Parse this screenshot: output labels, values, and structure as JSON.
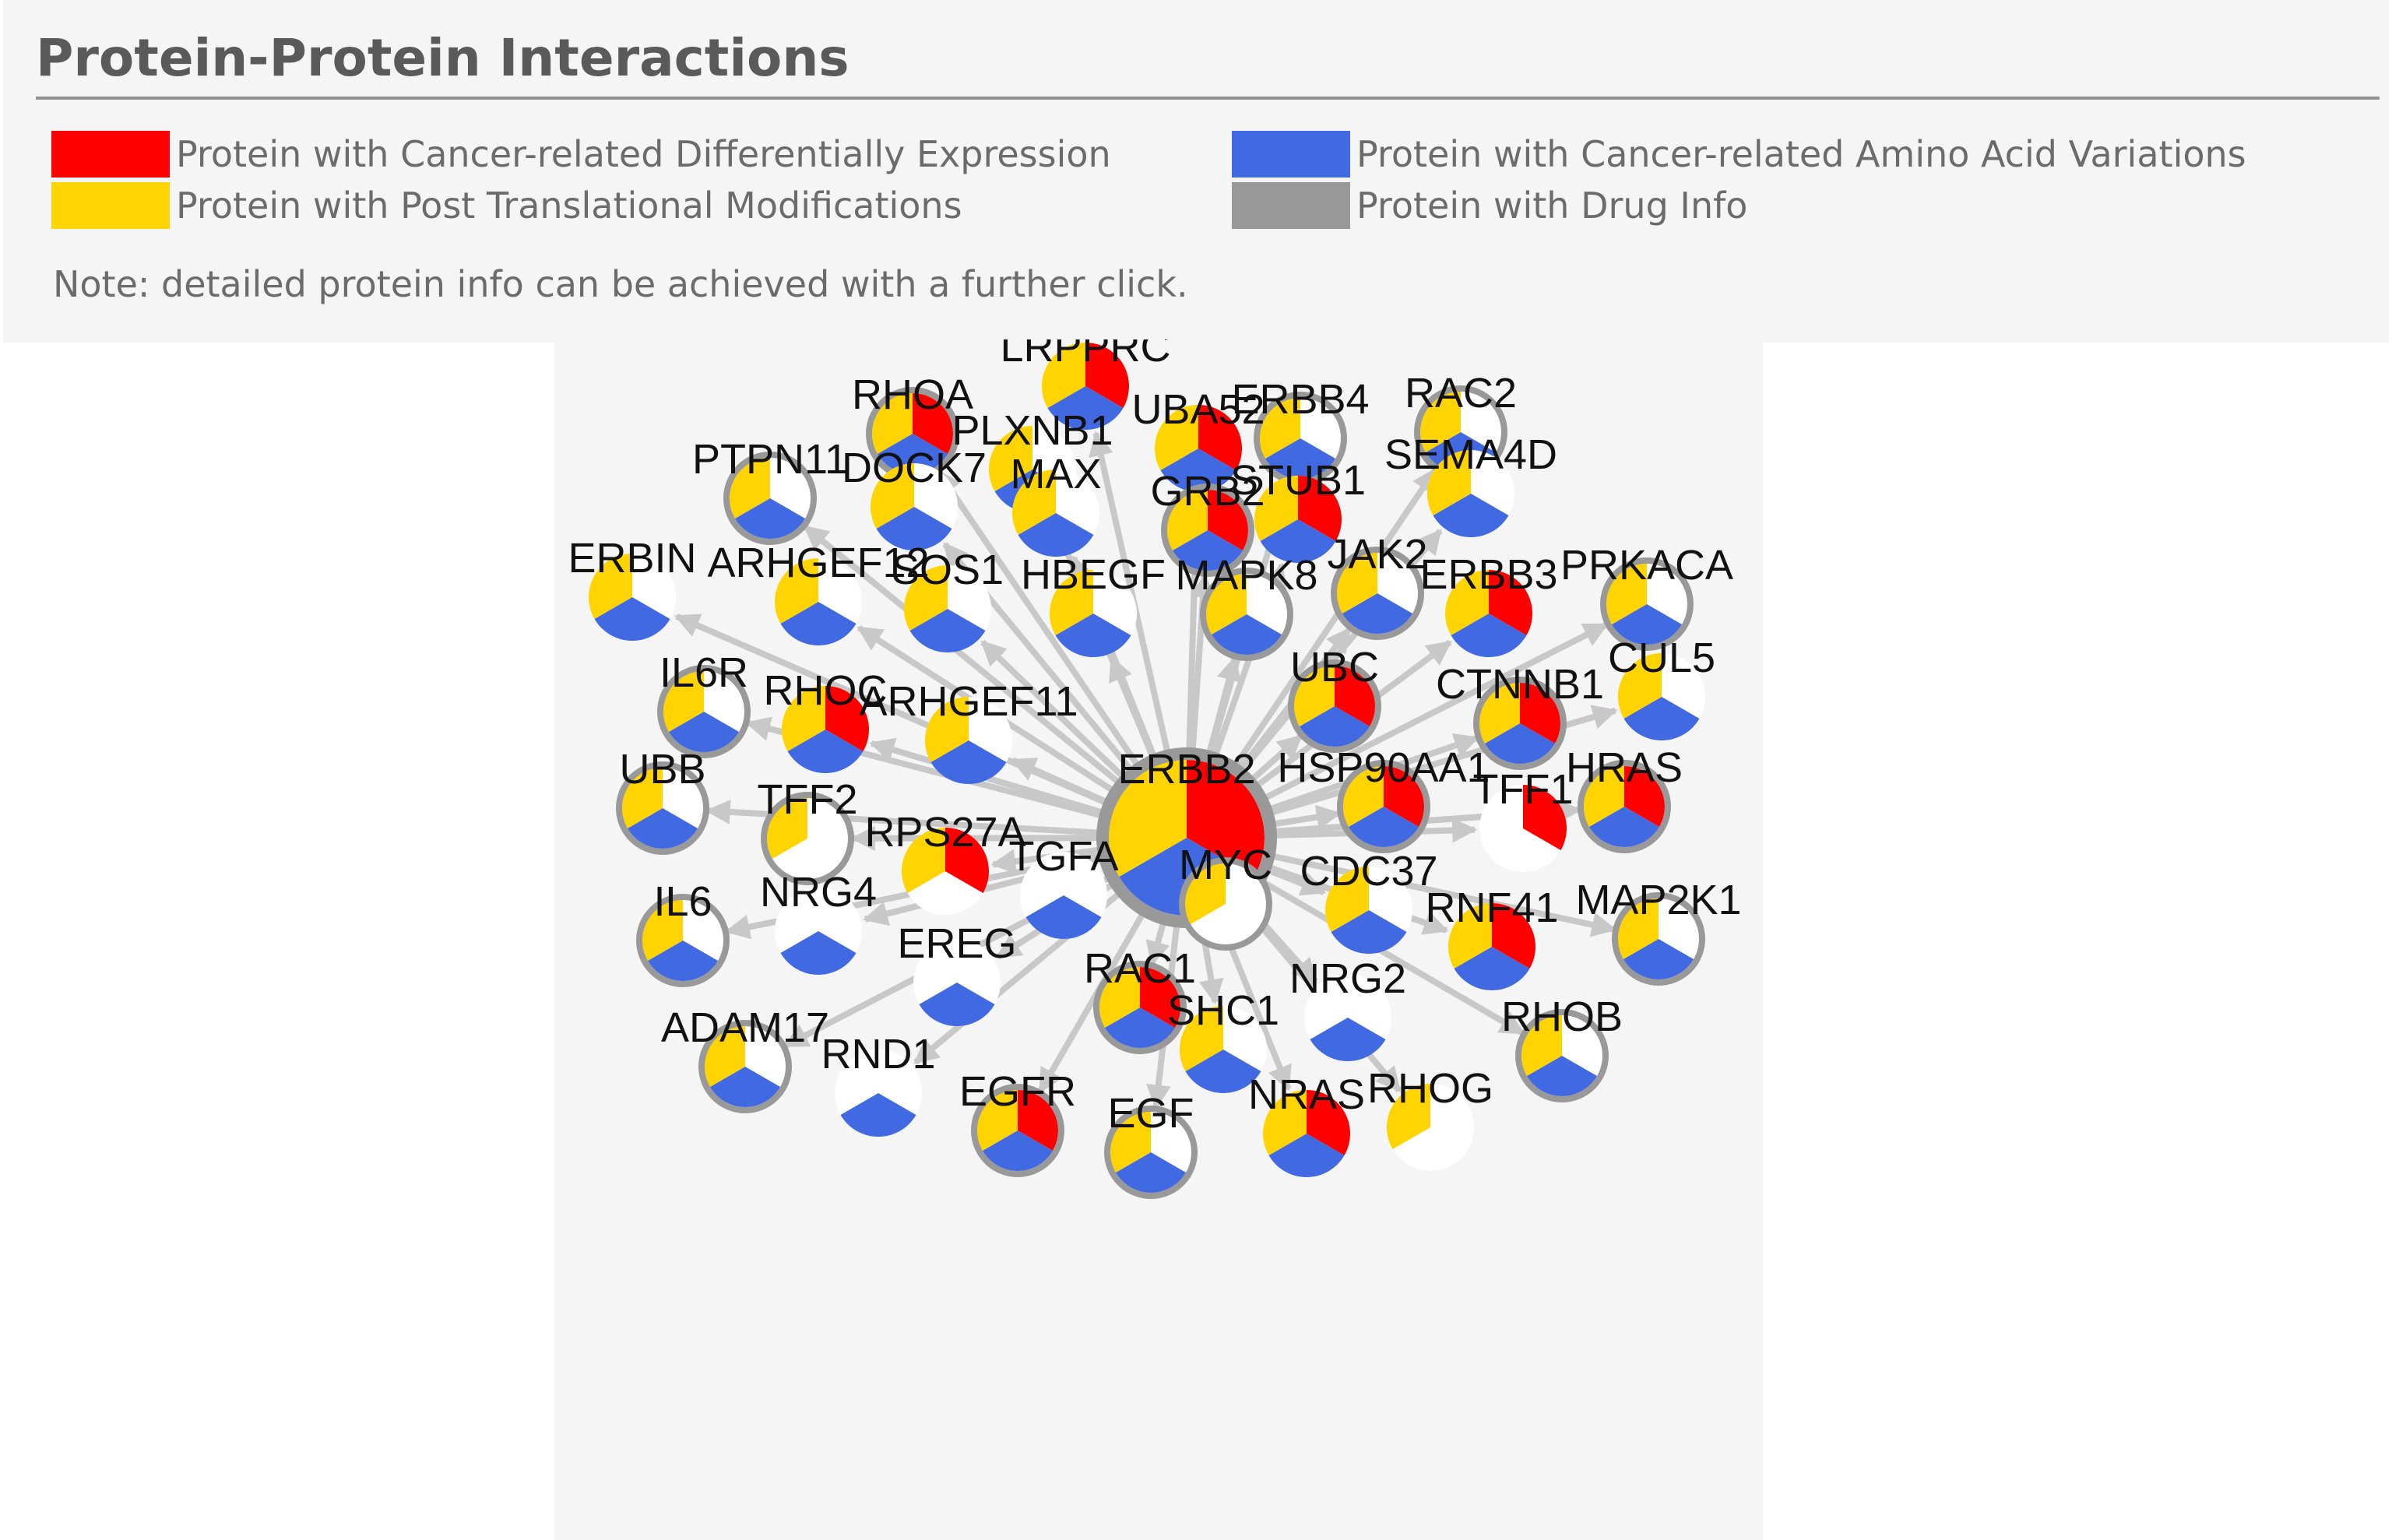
{
  "header": {
    "title": "Protein-Protein Interactions",
    "note": "Note: detailed protein info can be achieved with a further click."
  },
  "legend": [
    {
      "label": "Protein with Cancer-related Differentially Expression",
      "color": "#ff0000"
    },
    {
      "label": "Protein with Post Translational Modifications",
      "color": "#ffd400"
    },
    {
      "label": "Protein with Cancer-related Amino Acid Variations",
      "color": "#4169e1"
    },
    {
      "label": "Protein with Drug Info",
      "color": "#999999"
    }
  ],
  "colors": {
    "red": "#ff0000",
    "yellow": "#ffd400",
    "blue": "#4169e1",
    "gray": "#999999",
    "edge": "#c8c8c8",
    "background": "#f5f5f5"
  },
  "network": {
    "center": "ERBB2",
    "nodes": [
      {
        "name": "ERBB2",
        "red": true,
        "yellow": true,
        "blue": true,
        "drug": true
      },
      {
        "name": "LRPPRC",
        "red": true,
        "yellow": true,
        "blue": true,
        "drug": false
      },
      {
        "name": "RHOA",
        "red": true,
        "yellow": true,
        "blue": true,
        "drug": true
      },
      {
        "name": "PLXNB1",
        "red": false,
        "yellow": true,
        "blue": true,
        "drug": false
      },
      {
        "name": "UBA52",
        "red": true,
        "yellow": true,
        "blue": true,
        "drug": false
      },
      {
        "name": "ERBB4",
        "red": false,
        "yellow": true,
        "blue": true,
        "drug": true
      },
      {
        "name": "RAC2",
        "red": false,
        "yellow": true,
        "blue": true,
        "drug": true
      },
      {
        "name": "PTPN11",
        "red": false,
        "yellow": true,
        "blue": true,
        "drug": true
      },
      {
        "name": "DOCK7",
        "red": false,
        "yellow": true,
        "blue": true,
        "drug": false
      },
      {
        "name": "MAX",
        "red": false,
        "yellow": true,
        "blue": true,
        "drug": false
      },
      {
        "name": "GRB2",
        "red": true,
        "yellow": true,
        "blue": true,
        "drug": true
      },
      {
        "name": "STUB1",
        "red": true,
        "yellow": true,
        "blue": true,
        "drug": false
      },
      {
        "name": "SEMA4D",
        "red": false,
        "yellow": true,
        "blue": true,
        "drug": false
      },
      {
        "name": "ERBIN",
        "red": false,
        "yellow": true,
        "blue": true,
        "drug": false
      },
      {
        "name": "ARHGEF12",
        "red": false,
        "yellow": true,
        "blue": true,
        "drug": false
      },
      {
        "name": "SOS1",
        "red": false,
        "yellow": true,
        "blue": true,
        "drug": false
      },
      {
        "name": "HBEGF",
        "red": false,
        "yellow": true,
        "blue": true,
        "drug": false
      },
      {
        "name": "MAPK8",
        "red": false,
        "yellow": true,
        "blue": true,
        "drug": true
      },
      {
        "name": "JAK2",
        "red": false,
        "yellow": true,
        "blue": true,
        "drug": true
      },
      {
        "name": "ERBB3",
        "red": true,
        "yellow": true,
        "blue": true,
        "drug": false
      },
      {
        "name": "PRKACA",
        "red": false,
        "yellow": true,
        "blue": true,
        "drug": true
      },
      {
        "name": "IL6R",
        "red": false,
        "yellow": true,
        "blue": true,
        "drug": true
      },
      {
        "name": "RHOC",
        "red": true,
        "yellow": true,
        "blue": true,
        "drug": false
      },
      {
        "name": "ARHGEF11",
        "red": false,
        "yellow": true,
        "blue": true,
        "drug": false
      },
      {
        "name": "UBC",
        "red": true,
        "yellow": true,
        "blue": true,
        "drug": true
      },
      {
        "name": "CTNNB1",
        "red": true,
        "yellow": true,
        "blue": true,
        "drug": true
      },
      {
        "name": "CUL5",
        "red": false,
        "yellow": true,
        "blue": true,
        "drug": false
      },
      {
        "name": "UBB",
        "red": false,
        "yellow": true,
        "blue": true,
        "drug": true
      },
      {
        "name": "TFF2",
        "red": false,
        "yellow": true,
        "blue": false,
        "drug": true
      },
      {
        "name": "RPS27A",
        "red": true,
        "yellow": true,
        "blue": false,
        "drug": false
      },
      {
        "name": "HSP90AA1",
        "red": true,
        "yellow": true,
        "blue": true,
        "drug": true
      },
      {
        "name": "TFF1",
        "red": true,
        "yellow": false,
        "blue": false,
        "drug": false
      },
      {
        "name": "HRAS",
        "red": true,
        "yellow": true,
        "blue": true,
        "drug": true
      },
      {
        "name": "IL6",
        "red": false,
        "yellow": true,
        "blue": true,
        "drug": true
      },
      {
        "name": "NRG4",
        "red": false,
        "yellow": false,
        "blue": true,
        "drug": false
      },
      {
        "name": "TGFA",
        "red": false,
        "yellow": false,
        "blue": true,
        "drug": false
      },
      {
        "name": "MYC",
        "red": false,
        "yellow": true,
        "blue": false,
        "drug": true
      },
      {
        "name": "CDC37",
        "red": false,
        "yellow": true,
        "blue": true,
        "drug": false
      },
      {
        "name": "RNF41",
        "red": true,
        "yellow": true,
        "blue": true,
        "drug": false
      },
      {
        "name": "MAP2K1",
        "red": false,
        "yellow": true,
        "blue": true,
        "drug": true
      },
      {
        "name": "EREG",
        "red": false,
        "yellow": false,
        "blue": true,
        "drug": false
      },
      {
        "name": "RAC1",
        "red": true,
        "yellow": true,
        "blue": true,
        "drug": true
      },
      {
        "name": "SHC1",
        "red": false,
        "yellow": true,
        "blue": true,
        "drug": false
      },
      {
        "name": "NRG2",
        "red": false,
        "yellow": false,
        "blue": true,
        "drug": false
      },
      {
        "name": "ADAM17",
        "red": false,
        "yellow": true,
        "blue": true,
        "drug": true
      },
      {
        "name": "RND1",
        "red": false,
        "yellow": false,
        "blue": true,
        "drug": false
      },
      {
        "name": "EGFR",
        "red": true,
        "yellow": true,
        "blue": true,
        "drug": true
      },
      {
        "name": "EGF",
        "red": false,
        "yellow": true,
        "blue": true,
        "drug": true
      },
      {
        "name": "NRAS",
        "red": true,
        "yellow": true,
        "blue": true,
        "drug": false
      },
      {
        "name": "RHOG",
        "red": false,
        "yellow": true,
        "blue": false,
        "drug": false
      },
      {
        "name": "RHOB",
        "red": false,
        "yellow": true,
        "blue": true,
        "drug": true
      }
    ]
  }
}
